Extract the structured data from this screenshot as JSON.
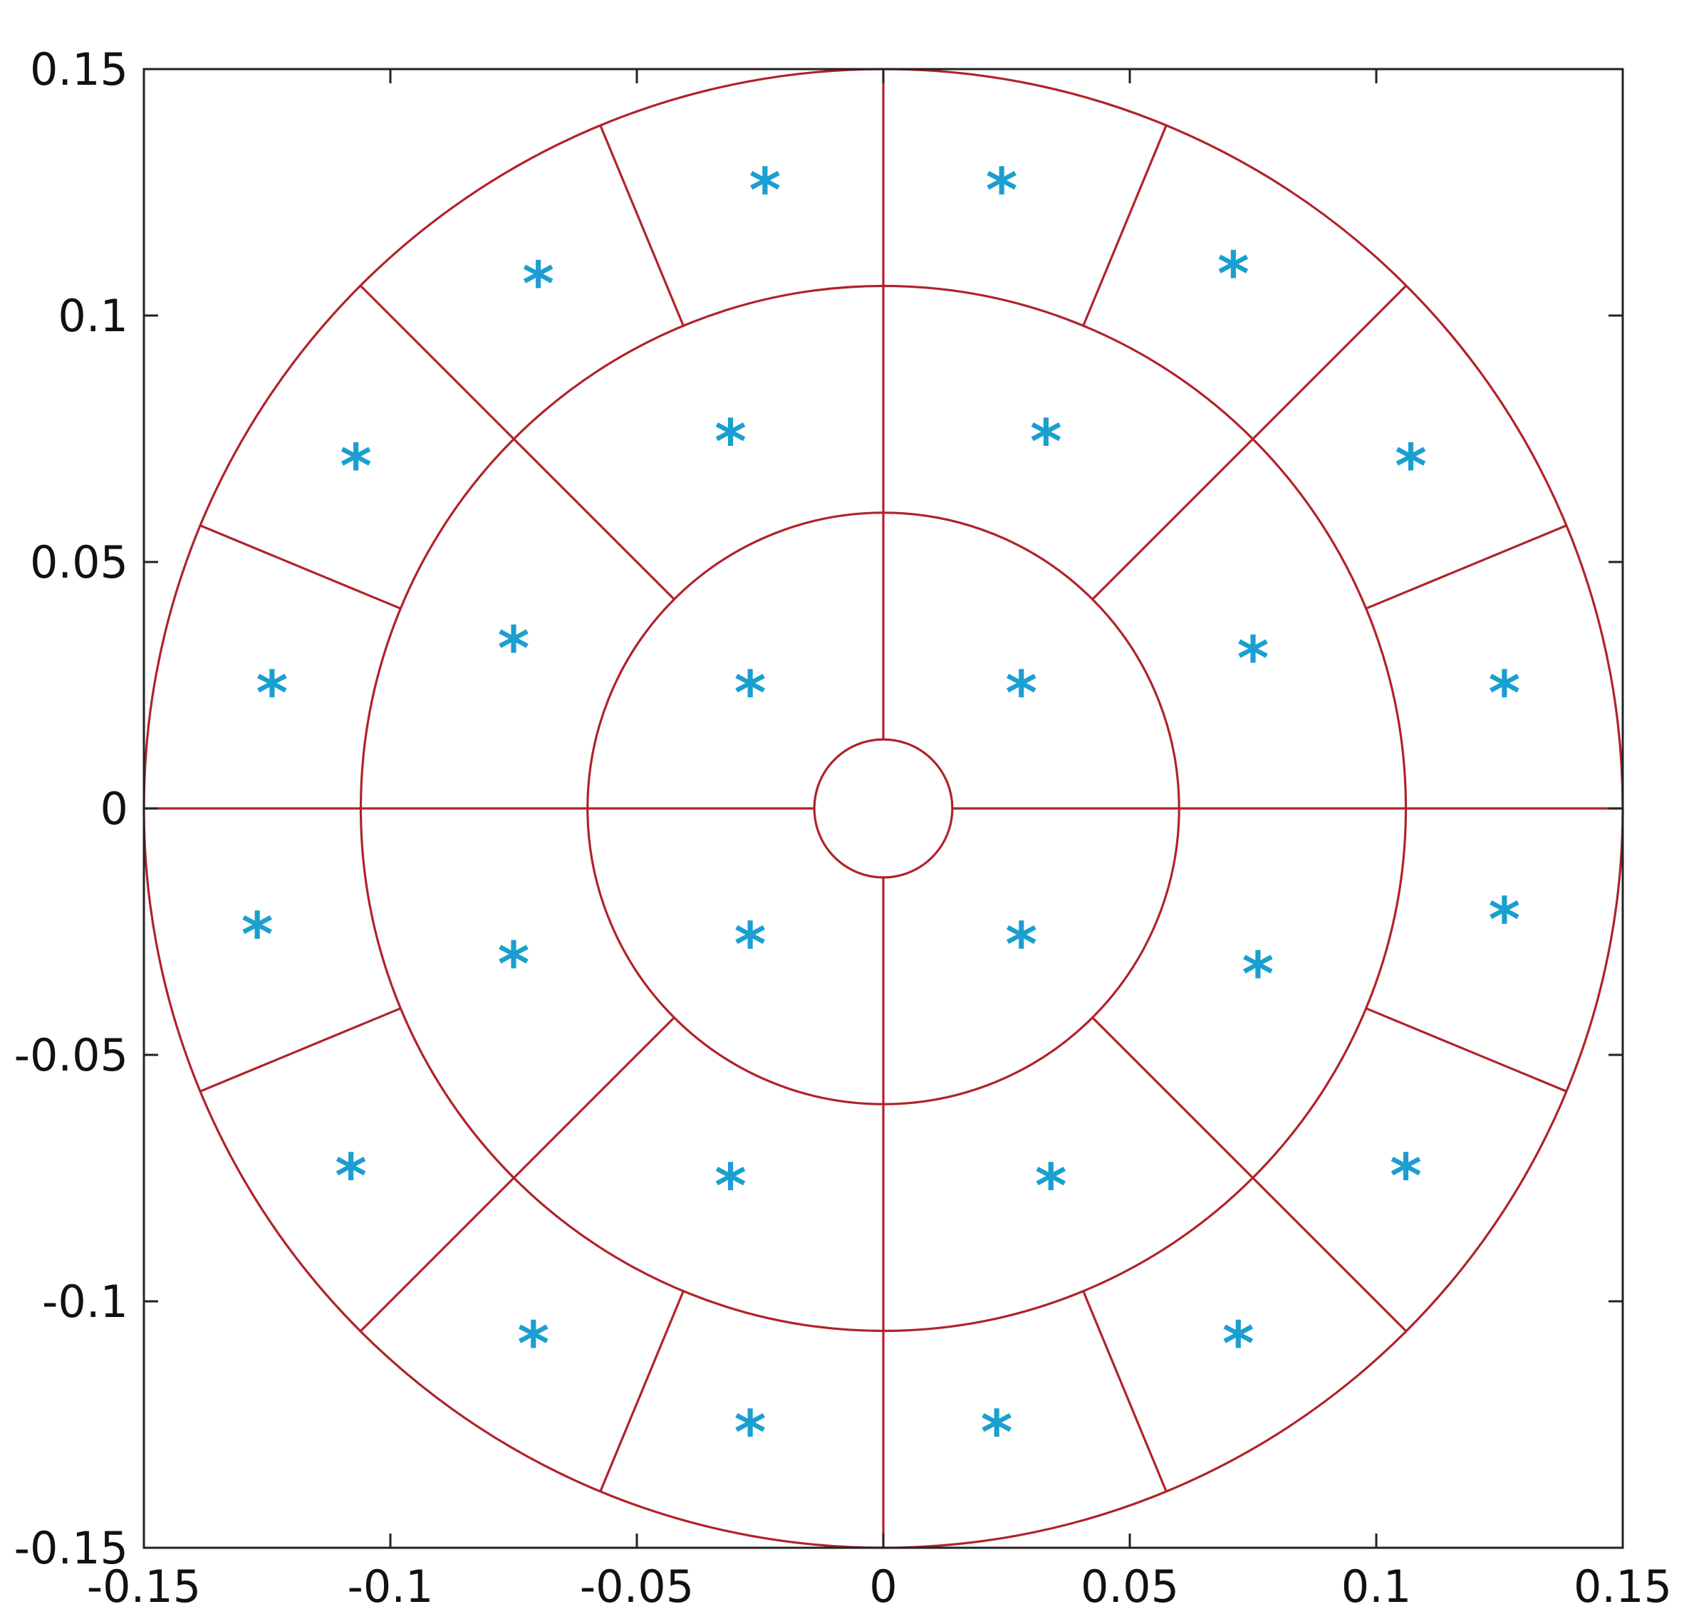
{
  "chart_data": {
    "type": "scatter",
    "title": "",
    "xlabel": "",
    "ylabel": "",
    "xlim": [
      -0.15,
      0.15
    ],
    "ylim": [
      -0.15,
      0.15
    ],
    "grid": false,
    "x_ticks": [
      -0.15,
      -0.1,
      -0.05,
      0,
      0.05,
      0.1,
      0.15
    ],
    "y_ticks": [
      -0.15,
      -0.1,
      -0.05,
      0,
      0.05,
      0.1,
      0.15
    ],
    "x_tick_labels": [
      "-0.15",
      "-0.1",
      "-0.05",
      "0",
      "0.05",
      "0.1",
      "0.15"
    ],
    "y_tick_labels": [
      "-0.15",
      "-0.1",
      "-0.05",
      "0",
      "0.05",
      "0.1",
      "0.15"
    ],
    "colors": {
      "grid_lines": "#b0232a",
      "markers": "#1a9fd0",
      "axes": "#222222"
    },
    "marker_glyph": "*",
    "partition": {
      "ring_radii": [
        0.014,
        0.06,
        0.106,
        0.15
      ],
      "segments": [
        {
          "r_inner": 0.014,
          "r_outer": 0.06,
          "spoke_angles_deg": [
            0,
            90,
            180,
            270
          ]
        },
        {
          "r_inner": 0.06,
          "r_outer": 0.106,
          "spoke_angles_deg": [
            0,
            45,
            90,
            135,
            180,
            225,
            270,
            315
          ]
        },
        {
          "r_inner": 0.106,
          "r_outer": 0.15,
          "spoke_angles_deg": [
            0,
            22.5,
            45,
            67.5,
            90,
            112.5,
            135,
            157.5,
            180,
            202.5,
            225,
            247.5,
            270,
            292.5,
            315,
            337.5
          ]
        }
      ]
    },
    "series": [
      {
        "points": [
          [
            0.028,
            0.024
          ],
          [
            -0.027,
            0.024
          ],
          [
            -0.027,
            -0.027
          ],
          [
            0.028,
            -0.027
          ],
          [
            0.033,
            0.075
          ],
          [
            -0.031,
            0.075
          ],
          [
            -0.075,
            0.033
          ],
          [
            -0.075,
            -0.031
          ],
          [
            -0.031,
            -0.076
          ],
          [
            0.034,
            -0.076
          ],
          [
            0.076,
            -0.033
          ],
          [
            0.075,
            0.031
          ],
          [
            0.024,
            0.126
          ],
          [
            -0.024,
            0.126
          ],
          [
            -0.07,
            0.107
          ],
          [
            -0.107,
            0.07
          ],
          [
            -0.124,
            0.024
          ],
          [
            -0.127,
            -0.025
          ],
          [
            -0.108,
            -0.074
          ],
          [
            -0.071,
            -0.108
          ],
          [
            -0.027,
            -0.126
          ],
          [
            0.023,
            -0.126
          ],
          [
            0.072,
            -0.108
          ],
          [
            0.106,
            -0.074
          ],
          [
            0.126,
            -0.022
          ],
          [
            0.126,
            0.024
          ],
          [
            0.107,
            0.07
          ],
          [
            0.071,
            0.109
          ]
        ]
      }
    ]
  }
}
